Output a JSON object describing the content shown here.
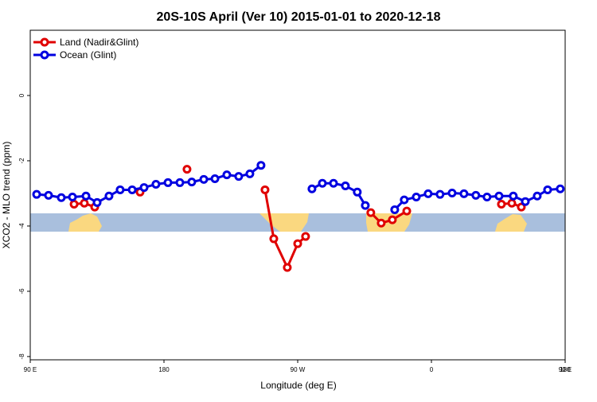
{
  "chart_data": {
    "type": "line",
    "title": "20S-10S April (Ver 10)   2015-01-01 to 2020-12-18",
    "x_label": "Longitude (deg E)",
    "y_label": "XCO2 - MLO trend (ppm)",
    "xlim": [
      90,
      450
    ],
    "xticks": [
      {
        "value": 90,
        "label": "90 E"
      },
      {
        "value": 180,
        "label": "180"
      },
      {
        "value": 270,
        "label": "90 W"
      },
      {
        "value": 360,
        "label": "0"
      },
      {
        "value": 450,
        "label": "90 E"
      }
    ],
    "xticks_extra": [
      {
        "value": 450,
        "label": "180"
      }
    ],
    "ylim": [
      -8.1,
      2
    ],
    "yticks": [
      0,
      -2,
      -4,
      -6,
      -8
    ],
    "legend": "top-left",
    "series": [
      {
        "name": "Land (Nadir&Glint)",
        "color": "#e00000",
        "x": [
          119.5,
          126.4,
          133.4,
          null,
          163.9,
          null,
          195.5,
          null,
          248,
          253.9,
          263,
          270,
          275.3,
          null,
          319.2,
          326.2,
          333.7,
          343.4,
          null,
          407.1,
          414.1,
          420.5
        ],
        "values": [
          -3.33,
          -3.3,
          -3.42,
          null,
          -2.96,
          null,
          -2.26,
          null,
          -2.89,
          -4.39,
          -5.27,
          -4.54,
          -4.32,
          null,
          -3.59,
          -3.91,
          -3.81,
          -3.54,
          null,
          -3.33,
          -3.3,
          -3.42
        ]
      },
      {
        "name": "Ocean (Glint)",
        "color": "#0000e0",
        "x": [
          94.3,
          102.3,
          110.9,
          118.4,
          127.5,
          135,
          143,
          150.5,
          158.6,
          166.6,
          174.6,
          182.7,
          190.7,
          198.7,
          206.8,
          214.3,
          222.3,
          230.3,
          237.8,
          245.3,
          null,
          279.6,
          286.6,
          294.1,
          302.1,
          310.1,
          315.5,
          null,
          335.3,
          341.7,
          349.8,
          357.8,
          365.8,
          373.9,
          381.9,
          389.9,
          397.4,
          405.5,
          415.1,
          423.2,
          431.2,
          438.2,
          446.7
        ],
        "values": [
          -3.03,
          -3.06,
          -3.13,
          -3.11,
          -3.08,
          -3.28,
          -3.08,
          -2.89,
          -2.89,
          -2.82,
          -2.72,
          -2.67,
          -2.67,
          -2.65,
          -2.57,
          -2.55,
          -2.43,
          -2.48,
          -2.4,
          -2.14,
          null,
          -2.86,
          -2.69,
          -2.69,
          -2.77,
          -2.96,
          -3.37,
          null,
          -3.5,
          -3.2,
          -3.11,
          -3.01,
          -3.03,
          -2.99,
          -3.01,
          -3.06,
          -3.11,
          -3.08,
          -3.08,
          -3.25,
          -3.08,
          -2.89,
          -2.86
        ]
      }
    ]
  }
}
